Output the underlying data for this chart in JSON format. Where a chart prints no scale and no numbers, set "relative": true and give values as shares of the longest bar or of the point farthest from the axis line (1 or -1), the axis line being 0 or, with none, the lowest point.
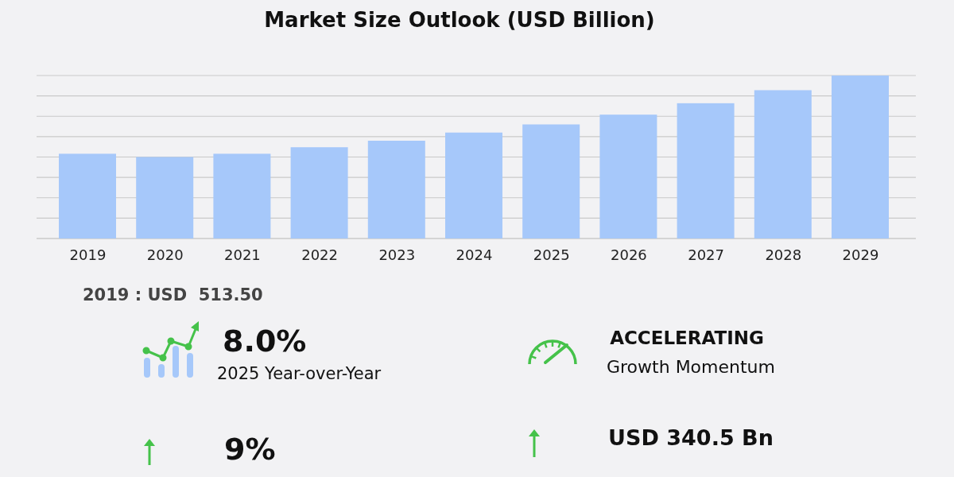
{
  "chart_data": {
    "type": "bar",
    "title": "Market Size Outlook (USD Billion)",
    "categories": [
      "2019",
      "2020",
      "2021",
      "2022",
      "2023",
      "2024",
      "2025",
      "2026",
      "2027",
      "2028",
      "2029"
    ],
    "values": [
      0.52,
      0.5,
      0.52,
      0.56,
      0.6,
      0.65,
      0.7,
      0.76,
      0.83,
      0.91,
      1
    ],
    "color": "#a6c8fa",
    "relative": true,
    "grid": "y",
    "annotations": [
      "2019 : USD  513.50",
      "8.0%",
      "2025 Year-over-Year",
      "ACCELERATING",
      "Growth Momentum",
      "USD 340.5 Bn",
      "9%"
    ]
  }
}
